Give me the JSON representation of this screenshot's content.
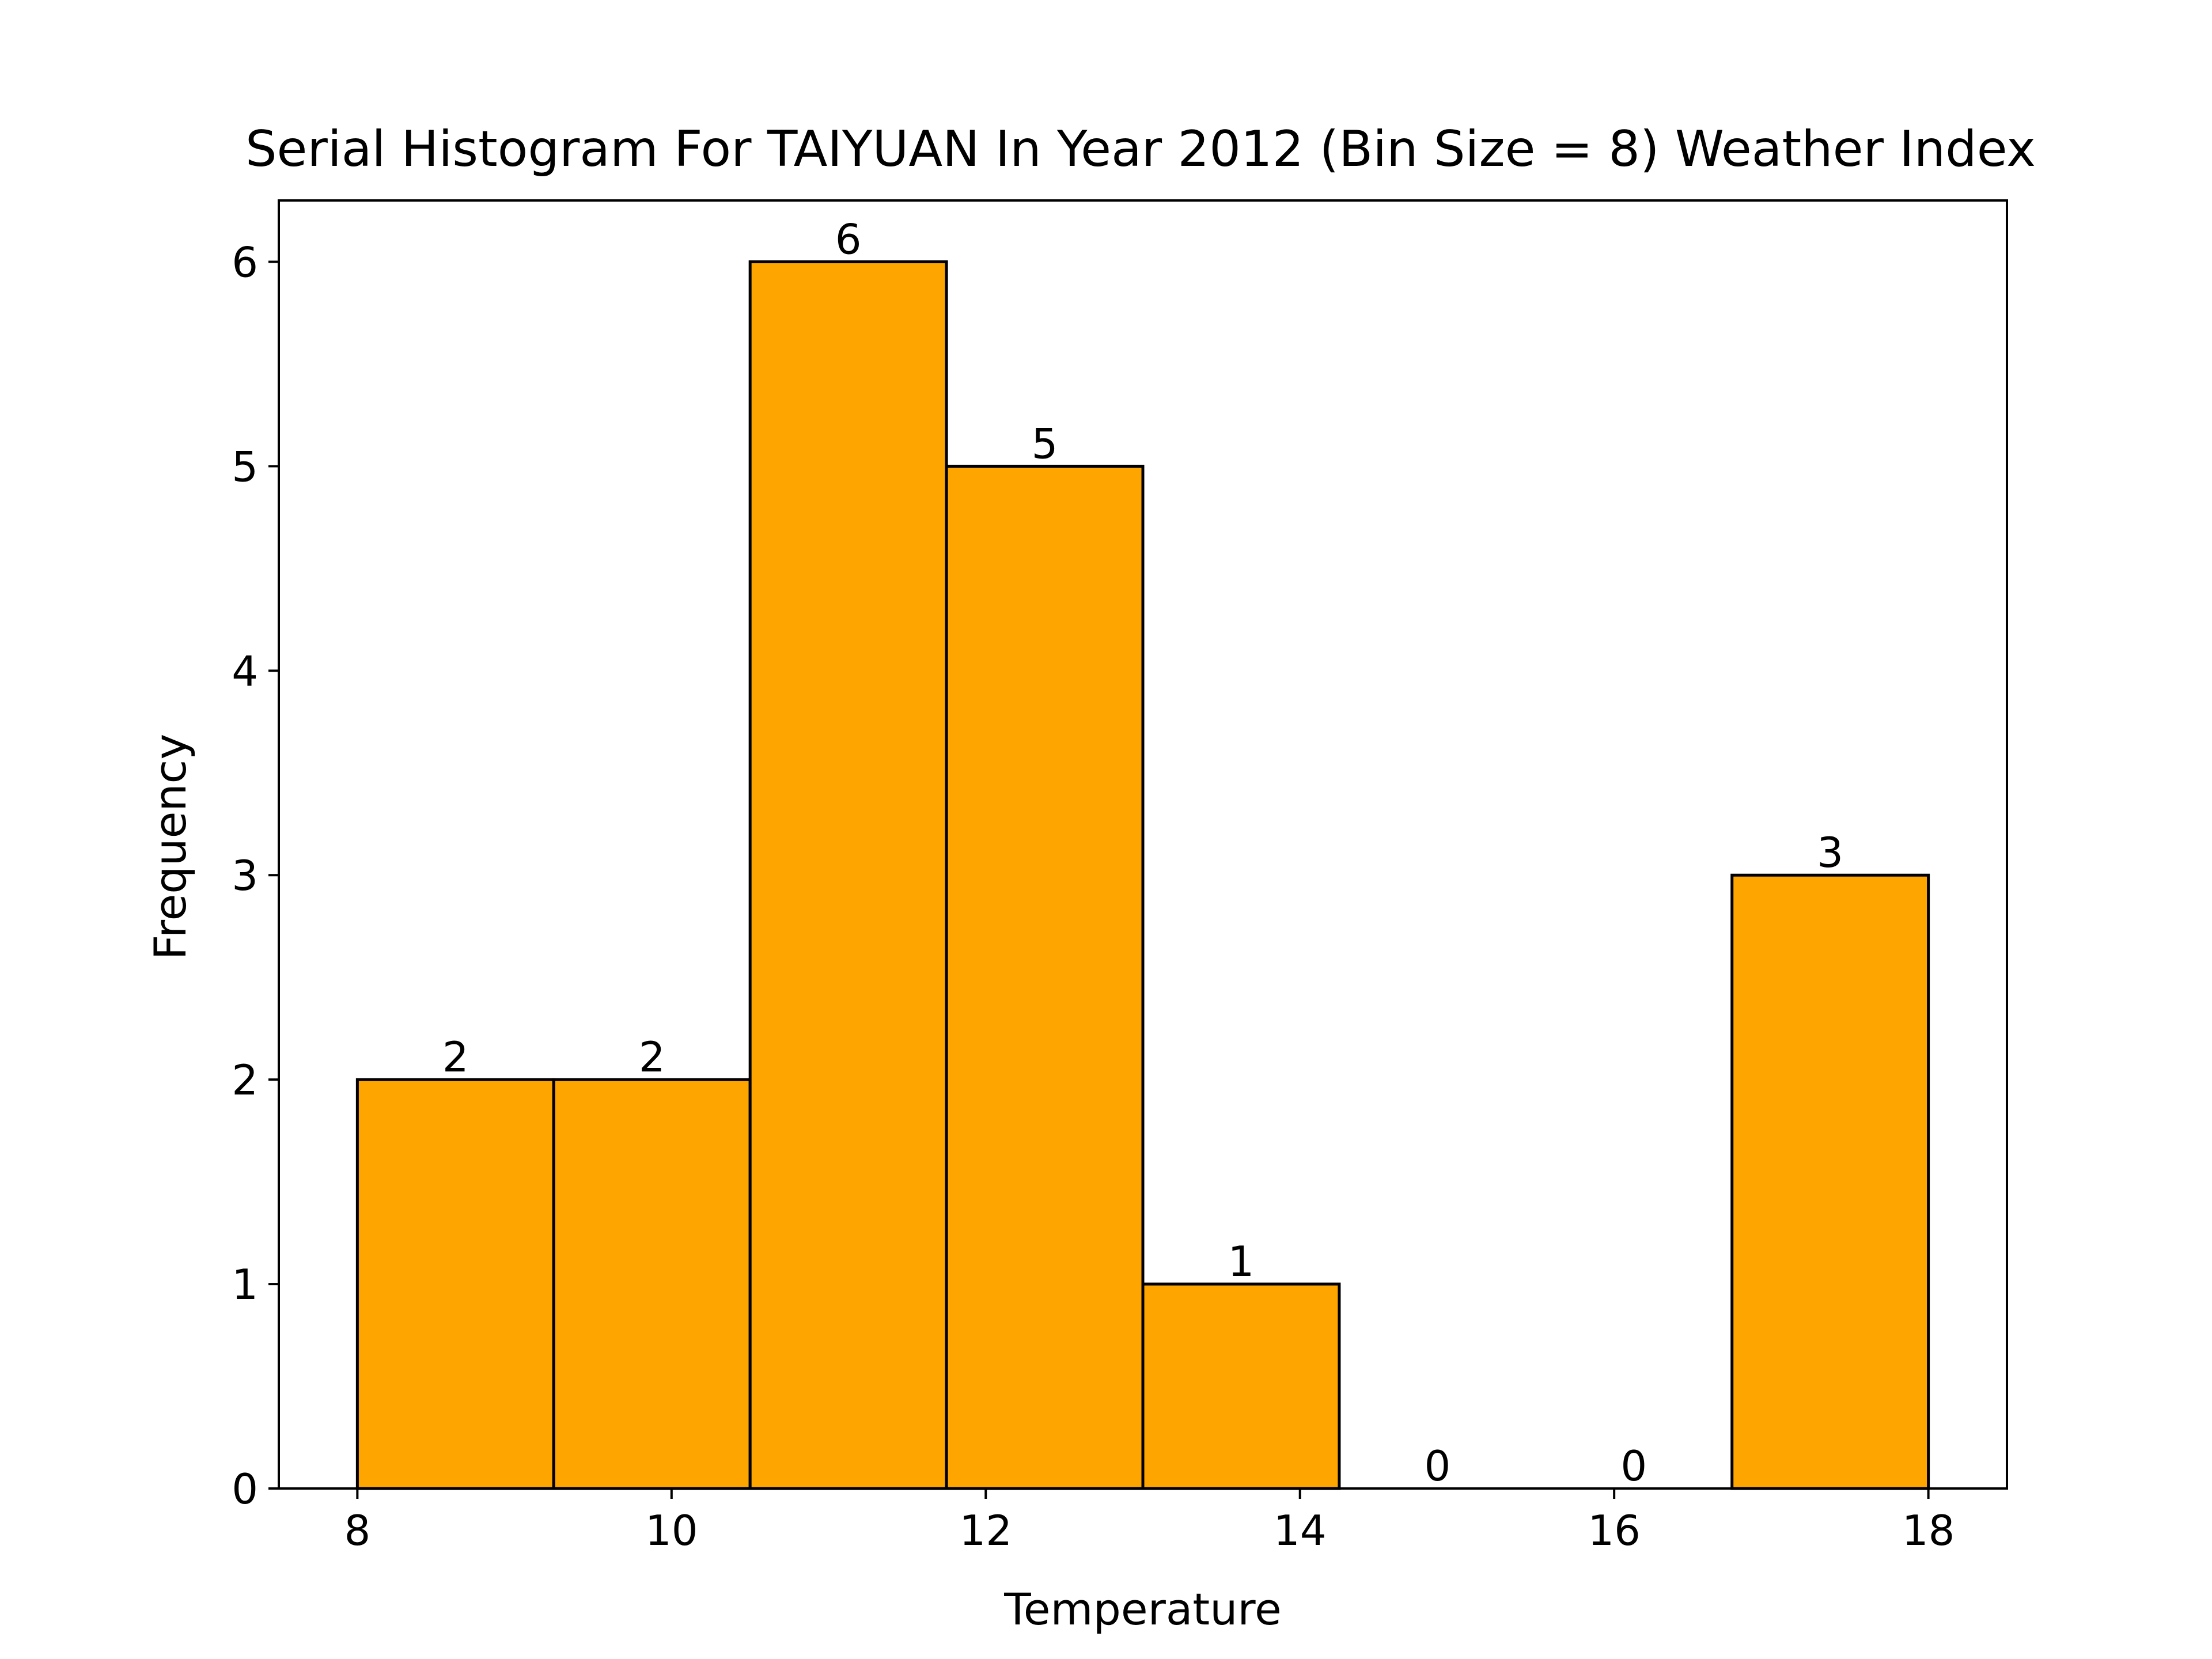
{
  "chart_data": {
    "type": "bar",
    "title": "Serial Histogram For TAIYUAN In Year 2012 (Bin Size = 8) Weather Index",
    "xlabel": "Temperature",
    "ylabel": "Frequency",
    "bin_edges": [
      8,
      9.25,
      10.5,
      11.75,
      13,
      14.25,
      15.5,
      16.75,
      18
    ],
    "values": [
      2,
      2,
      6,
      5,
      1,
      0,
      0,
      3
    ],
    "xlim": [
      7.5,
      18.5
    ],
    "ylim": [
      0,
      6.3
    ],
    "xticks": [
      8,
      10,
      12,
      14,
      16,
      18
    ],
    "yticks": [
      0,
      1,
      2,
      3,
      4,
      5,
      6
    ],
    "grid": false,
    "bar_color": "#ffa500",
    "edge_color": "#000000"
  }
}
